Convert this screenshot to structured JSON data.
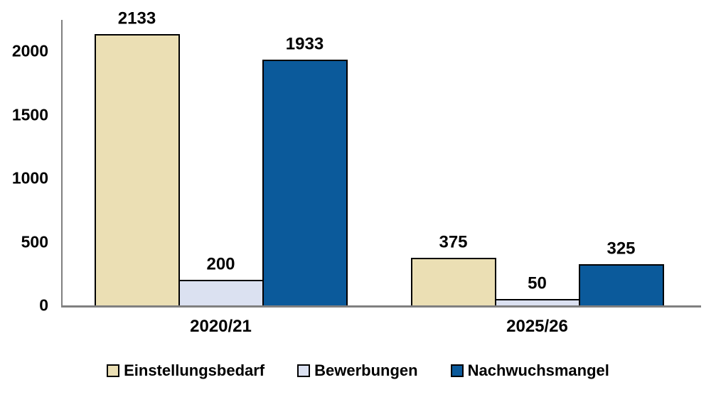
{
  "chart_data": {
    "type": "bar",
    "categories": [
      "2020/21",
      "2025/26"
    ],
    "series": [
      {
        "name": "Einstellungsbedarf",
        "color": "#EBDFB4",
        "values": [
          2133,
          375
        ]
      },
      {
        "name": "Bewerbungen",
        "color": "#DBE1F1",
        "values": [
          200,
          50
        ]
      },
      {
        "name": "Nachwuchsmangel",
        "color": "#0B5A9B",
        "values": [
          1933,
          325
        ]
      }
    ],
    "title": "",
    "xlabel": "",
    "ylabel": "",
    "y_ticks": [
      0,
      500,
      1000,
      1500,
      2000
    ],
    "ylim": [
      0,
      2250
    ],
    "grid": false,
    "data_labels": true,
    "legend_position": "bottom",
    "bar_border_color": "#000000",
    "axis_color": "#808080",
    "text_color": "#000000",
    "background_color": "#FFFFFF"
  }
}
